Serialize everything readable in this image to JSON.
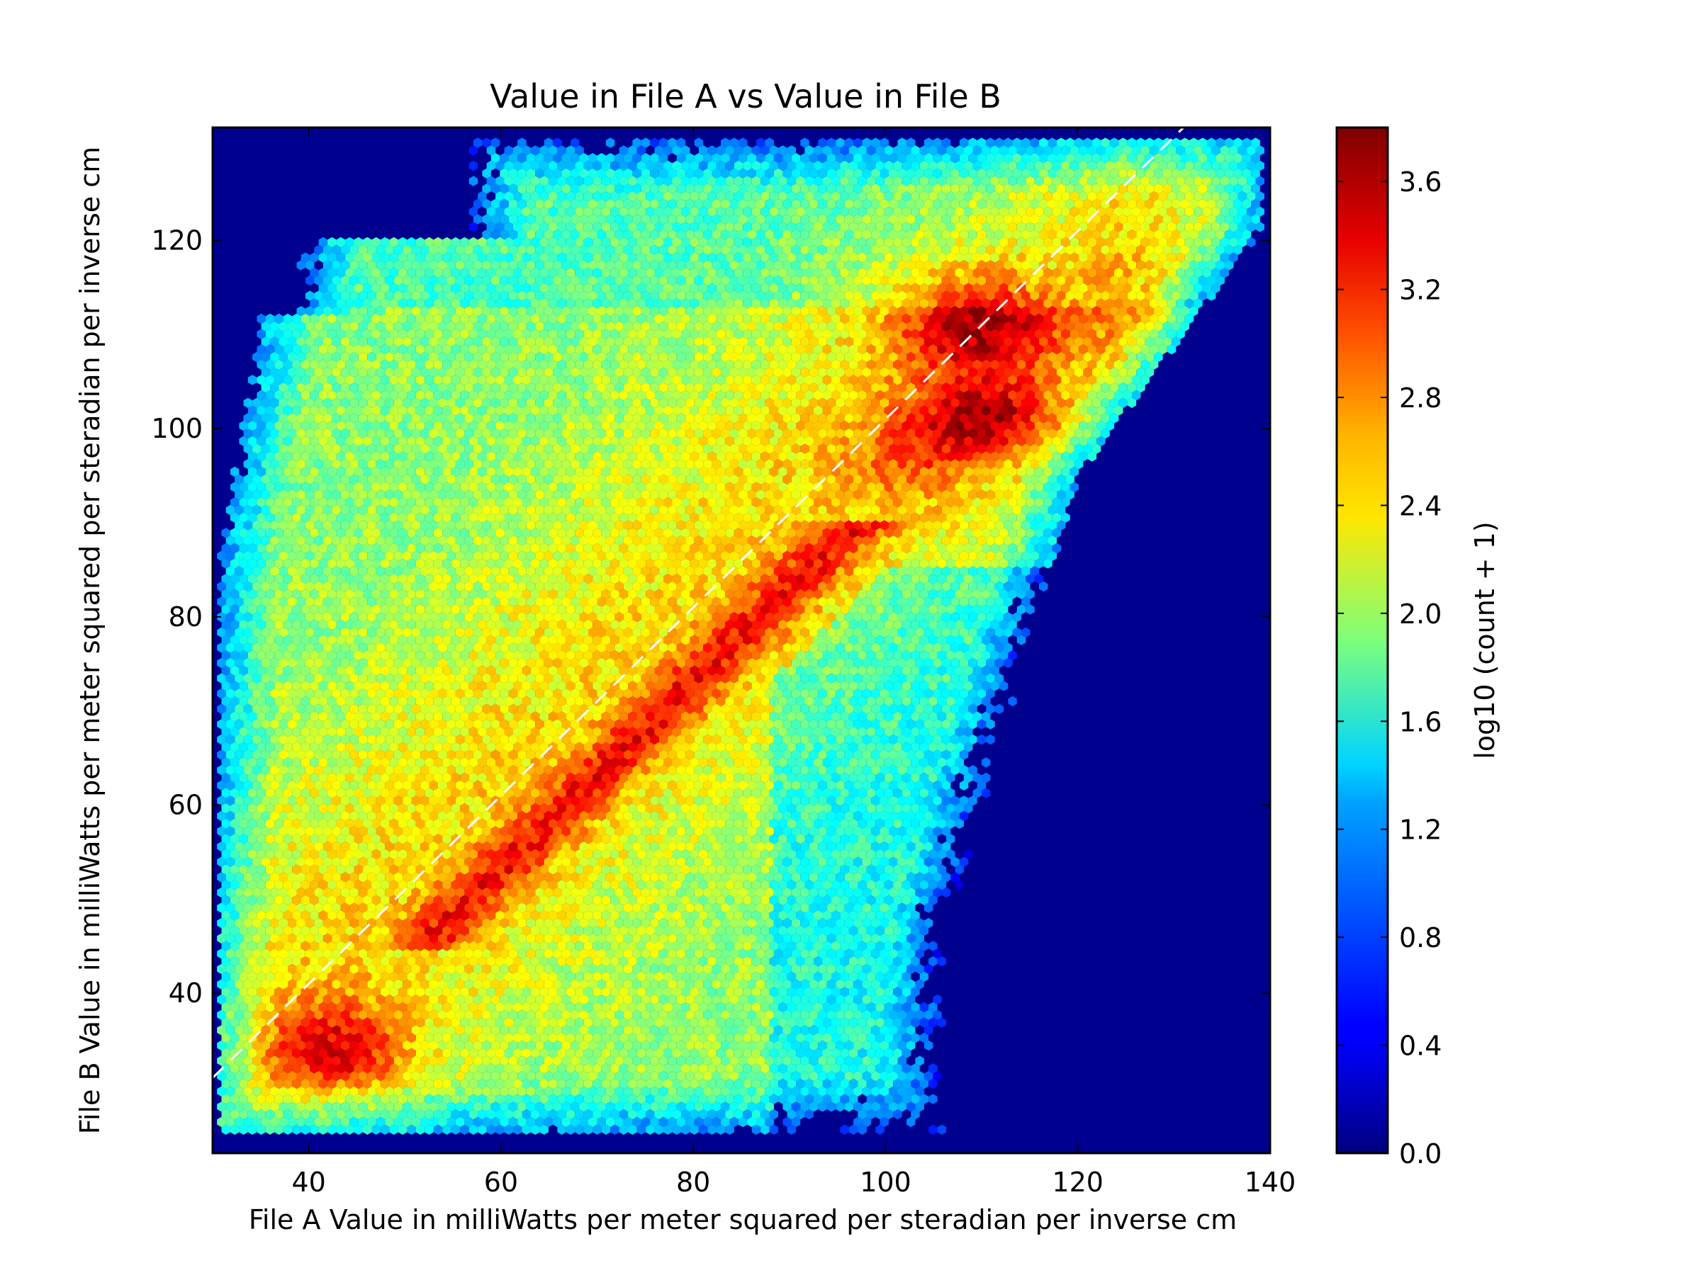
{
  "chart_data": {
    "type": "heatmap",
    "subtype": "hexbin",
    "title": "Value in File A vs Value in File B",
    "xlabel": "File A Value in milliWatts per meter squared per steradian per inverse cm",
    "ylabel": "File B Value in milliWatts per meter squared per steradian per inverse cm",
    "xlim": [
      30,
      140
    ],
    "ylim": [
      23,
      132
    ],
    "x_ticks": [
      40,
      60,
      80,
      100,
      120,
      140
    ],
    "y_ticks": [
      40,
      60,
      80,
      100,
      120
    ],
    "colormap": "jet",
    "background_color": "#00008f",
    "colorbar": {
      "label": "log10 (count + 1)",
      "range": [
        0.0,
        3.8
      ],
      "ticks": [
        "0.0",
        "0.4",
        "0.8",
        "1.2",
        "1.6",
        "2.0",
        "2.4",
        "2.8",
        "3.2",
        "3.6"
      ]
    },
    "reference_line": {
      "style": "dashed",
      "color": "#ffffff",
      "points": [
        [
          30,
          31
        ],
        [
          131,
          132
        ]
      ]
    },
    "density_model": {
      "description_points": [
        {
          "x": 43,
          "y": 34,
          "level": 3.35
        },
        {
          "x": 62,
          "y": 55,
          "level": 3.1
        },
        {
          "x": 76,
          "y": 72,
          "level": 3.05
        },
        {
          "x": 110,
          "y": 112,
          "level": 3.75
        },
        {
          "x": 112,
          "y": 101,
          "level": 3.5
        }
      ]
    }
  }
}
